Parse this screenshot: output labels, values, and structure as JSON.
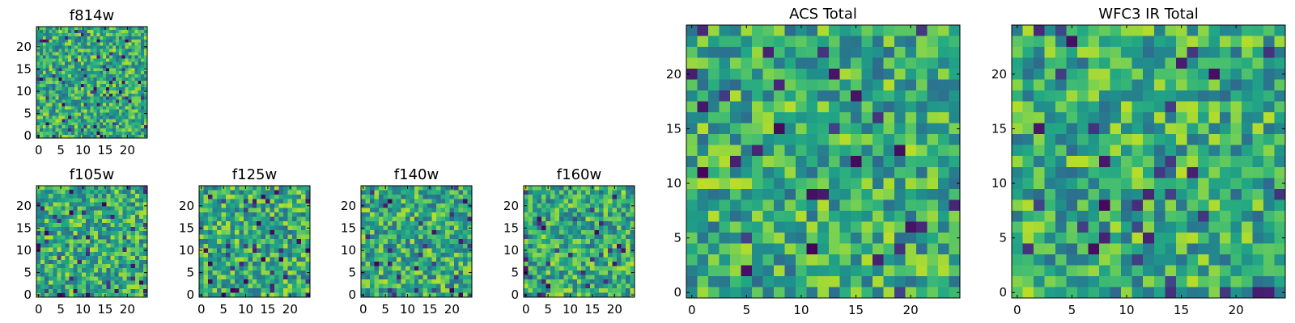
{
  "chart_data": [
    {
      "type": "heatmap",
      "title": "f814w",
      "xlim": [
        0,
        24
      ],
      "ylim": [
        0,
        24
      ],
      "xticks": [
        0,
        5,
        10,
        15,
        20
      ],
      "yticks": [
        0,
        5,
        10,
        15,
        20
      ],
      "xtick_labels": [
        "0",
        "5",
        "10",
        "15",
        "20"
      ],
      "ytick_labels": [
        "0",
        "5",
        "10",
        "15",
        "20"
      ],
      "colormap": "viridis"
    },
    {
      "type": "heatmap",
      "title": "f105w",
      "xlim": [
        0,
        24
      ],
      "ylim": [
        0,
        24
      ],
      "xticks": [
        0,
        5,
        10,
        15,
        20
      ],
      "yticks": [
        0,
        5,
        10,
        15,
        20
      ],
      "xtick_labels": [
        "0",
        "5",
        "10",
        "15",
        "20"
      ],
      "ytick_labels": [
        "0",
        "5",
        "10",
        "15",
        "20"
      ],
      "colormap": "viridis"
    },
    {
      "type": "heatmap",
      "title": "f125w",
      "xlim": [
        0,
        24
      ],
      "ylim": [
        0,
        24
      ],
      "xticks": [
        0,
        5,
        10,
        15,
        20
      ],
      "yticks": [
        0,
        5,
        10,
        15,
        20
      ],
      "xtick_labels": [
        "0",
        "5",
        "10",
        "15",
        "20"
      ],
      "ytick_labels": [
        "0",
        "5",
        "10",
        "15",
        "20"
      ],
      "colormap": "viridis"
    },
    {
      "type": "heatmap",
      "title": "f140w",
      "xlim": [
        0,
        24
      ],
      "ylim": [
        0,
        24
      ],
      "xticks": [
        0,
        5,
        10,
        15,
        20
      ],
      "yticks": [
        0,
        5,
        10,
        15,
        20
      ],
      "xtick_labels": [
        "0",
        "5",
        "10",
        "15",
        "20"
      ],
      "ytick_labels": [
        "0",
        "5",
        "10",
        "15",
        "20"
      ],
      "colormap": "viridis"
    },
    {
      "type": "heatmap",
      "title": "f160w",
      "xlim": [
        0,
        24
      ],
      "ylim": [
        0,
        24
      ],
      "xticks": [
        0,
        5,
        10,
        15,
        20
      ],
      "yticks": [
        0,
        5,
        10,
        15,
        20
      ],
      "xtick_labels": [
        "0",
        "5",
        "10",
        "15",
        "20"
      ],
      "ytick_labels": [
        "0",
        "5",
        "10",
        "15",
        "20"
      ],
      "colormap": "viridis"
    },
    {
      "type": "heatmap",
      "title": "ACS Total",
      "xlim": [
        0,
        24
      ],
      "ylim": [
        0,
        24
      ],
      "xticks": [
        0,
        5,
        10,
        15,
        20
      ],
      "yticks": [
        0,
        5,
        10,
        15,
        20
      ],
      "xtick_labels": [
        "0",
        "5",
        "10",
        "15",
        "20"
      ],
      "ytick_labels": [
        "0",
        "5",
        "10",
        "15",
        "20"
      ],
      "colormap": "viridis"
    },
    {
      "type": "heatmap",
      "title": "WFC3 IR Total",
      "xlim": [
        0,
        24
      ],
      "ylim": [
        0,
        24
      ],
      "xticks": [
        0,
        5,
        10,
        15,
        20
      ],
      "yticks": [
        0,
        5,
        10,
        15,
        20
      ],
      "xtick_labels": [
        "0",
        "5",
        "10",
        "15",
        "20"
      ],
      "ytick_labels": [
        "0",
        "5",
        "10",
        "15",
        "20"
      ],
      "colormap": "viridis"
    }
  ]
}
